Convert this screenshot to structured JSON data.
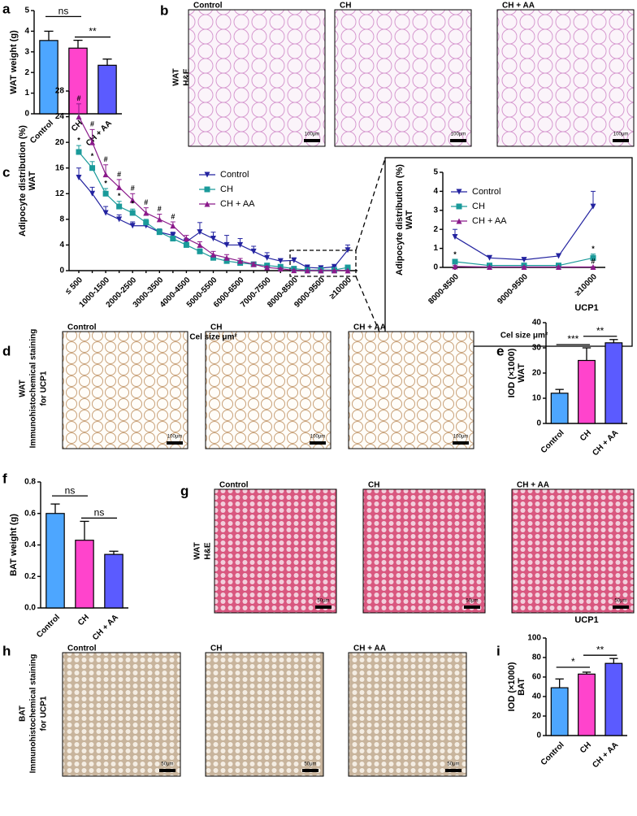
{
  "panel_letters": [
    "a",
    "b",
    "c",
    "d",
    "e",
    "f",
    "g",
    "h",
    "i"
  ],
  "figure_panels": [
    {
      "label": [
        "WAT",
        "H&E"
      ],
      "images": [
        {
          "title": "Control",
          "scale": "100μm"
        },
        {
          "title": "CH",
          "scale": "100μm"
        },
        {
          "title": "CH + AA",
          "scale": "100μm"
        }
      ]
    },
    {
      "label": [
        "WAT",
        "Immunohistochemical staining",
        "for UCP1"
      ],
      "images": [
        {
          "title": "Control",
          "scale": "100μm"
        },
        {
          "title": "CH",
          "scale": "100μm"
        },
        {
          "title": "CH + AA",
          "scale": "100μm"
        }
      ]
    },
    {
      "label": [
        "WAT",
        "H&E"
      ],
      "images": [
        {
          "title": "Control",
          "scale": "50μm"
        },
        {
          "title": "CH",
          "scale": "50μm"
        },
        {
          "title": "CH + AA",
          "scale": "50μm"
        }
      ]
    },
    {
      "label": [
        "BAT",
        "Immunohistochemical staining",
        "for UCP1"
      ],
      "images": [
        {
          "title": "Control",
          "scale": "50μm"
        },
        {
          "title": "CH",
          "scale": "50μm"
        },
        {
          "title": "CH + AA",
          "scale": "50μm"
        }
      ]
    }
  ],
  "chart_data": [
    {
      "type": "bar",
      "ylabel": [
        "WAT weight (g)"
      ],
      "categories": [
        "Control",
        "CH",
        "CH + AA"
      ],
      "values": [
        3.55,
        3.18,
        2.35
      ],
      "errors": [
        0.45,
        0.38,
        0.3
      ],
      "colors": [
        "#4da6ff",
        "#ff44cc",
        "#5b5bff"
      ],
      "ylim": [
        0,
        5
      ],
      "yticks": [
        0,
        1,
        2,
        3,
        4,
        5
      ],
      "significance": [
        {
          "from": 0,
          "to": 1,
          "label": "ns"
        },
        {
          "from": 1,
          "to": 2,
          "label": "**"
        }
      ]
    },
    {
      "type": "line",
      "ylabel": [
        "Adipocyte distribution (%)",
        "WAT"
      ],
      "xlabel": "Cel size μm²",
      "categories": [
        "≤ 500",
        null,
        "1000-1500",
        null,
        "2000-2500",
        null,
        "3000-3500",
        null,
        "4000-4500",
        null,
        "5000-5500",
        null,
        "6000-6500",
        null,
        "7000-7500",
        null,
        "8000-8500",
        null,
        "9000-9500",
        null,
        "≥10000"
      ],
      "series": [
        {
          "name": "Control",
          "color": "#2323a0",
          "marker": "triangle-down",
          "values": [
            14.5,
            12,
            9,
            8,
            7,
            7,
            6,
            5.5,
            4.5,
            6,
            5,
            4,
            4,
            3,
            2,
            1.5,
            1.6,
            0.5,
            0.4,
            0.6,
            3.2
          ],
          "errors": [
            1.5,
            1,
            1,
            0.7,
            0.6,
            0.7,
            0.5,
            0.5,
            0.5,
            1.5,
            1,
            1.5,
            1,
            0.8,
            0.8,
            0.3,
            0.4,
            0.1,
            0.1,
            0.1,
            0.8
          ]
        },
        {
          "name": "CH",
          "color": "#1a9a9a",
          "marker": "square",
          "values": [
            18.5,
            16,
            12,
            10,
            9,
            7.5,
            6,
            5,
            4,
            3,
            2,
            1.5,
            1.2,
            1,
            0.8,
            0.6,
            0.3,
            0.1,
            0.1,
            0.1,
            0.5
          ],
          "errors": [
            1,
            1,
            0.8,
            0.8,
            0.6,
            0.5,
            0.5,
            0.4,
            0.4,
            0.4,
            0.3,
            0.2,
            0.2,
            0.2,
            0.2,
            0.1,
            0.1,
            0.05,
            0.05,
            0.05,
            0.2
          ]
        },
        {
          "name": "CH + AA",
          "color": "#8b1a8b",
          "marker": "triangle-up",
          "values": [
            24,
            20,
            15,
            13,
            11,
            9,
            8,
            7,
            5,
            4,
            2.5,
            2,
            1.5,
            1,
            0.5,
            0.3,
            0.05,
            0.02,
            0.02,
            0.02,
            0.02
          ],
          "errors": [
            2,
            2,
            1.5,
            1.2,
            1,
            0.8,
            0.8,
            0.6,
            0.5,
            0.5,
            0.5,
            0.5,
            0.4,
            0.3,
            0.2,
            0.1,
            0.05,
            0.02,
            0.02,
            0.02,
            0.02
          ]
        }
      ],
      "annotations": [
        {
          "series": 1,
          "index": 0,
          "text": "*"
        },
        {
          "series": 1,
          "index": 1,
          "text": "*"
        },
        {
          "series": 1,
          "index": 2,
          "text": "*"
        },
        {
          "series": 1,
          "index": 3,
          "text": "*"
        },
        {
          "series": 1,
          "index": 4,
          "text": "*"
        },
        {
          "series": 2,
          "index": 0,
          "text": "#"
        },
        {
          "series": 2,
          "index": 1,
          "text": "#"
        },
        {
          "series": 2,
          "index": 2,
          "text": "#"
        },
        {
          "series": 2,
          "index": 3,
          "text": "#"
        },
        {
          "series": 2,
          "index": 4,
          "text": "#"
        },
        {
          "series": 2,
          "index": 5,
          "text": "#"
        },
        {
          "series": 2,
          "index": 6,
          "text": "#"
        },
        {
          "series": 2,
          "index": 7,
          "text": "#"
        }
      ],
      "ylim": [
        0,
        28
      ],
      "yticks": [
        0,
        4,
        8,
        12,
        16,
        20,
        24,
        28
      ],
      "legend": "upper center"
    },
    {
      "type": "line",
      "ylabel": [
        "Adipocyte distribution (%)",
        "WAT"
      ],
      "xlabel": "Cel size μm²",
      "categories": [
        "8000-8500",
        null,
        "9000-9500",
        null,
        "≥10000"
      ],
      "series": [
        {
          "name": "Control",
          "color": "#2323a0",
          "marker": "triangle-down",
          "values": [
            1.6,
            0.5,
            0.4,
            0.6,
            3.2
          ],
          "errors": [
            0.4,
            0.1,
            0.1,
            0.1,
            0.8
          ]
        },
        {
          "name": "CH",
          "color": "#1a9a9a",
          "marker": "square",
          "values": [
            0.3,
            0.1,
            0.1,
            0.1,
            0.5
          ],
          "errors": [
            0.1,
            0.05,
            0.05,
            0.05,
            0.2
          ]
        },
        {
          "name": "CH + AA",
          "color": "#8b1a8b",
          "marker": "triangle-up",
          "values": [
            0.05,
            0.02,
            0.02,
            0.02,
            0.02
          ],
          "errors": [
            0.05,
            0.02,
            0.02,
            0.02,
            0.02
          ]
        }
      ],
      "annotations": [
        {
          "series": 1,
          "index": 0,
          "text": "*"
        },
        {
          "series": 1,
          "index": 4,
          "text": "*"
        },
        {
          "series": 2,
          "index": 4,
          "text": "#"
        }
      ],
      "ylim": [
        0,
        5
      ],
      "yticks": [
        0,
        1,
        2,
        3,
        4,
        5
      ],
      "legend": "upper left"
    },
    {
      "type": "bar",
      "title": "UCP1",
      "ylabel": [
        "IOD (×1000)",
        "WAT"
      ],
      "categories": [
        "Control",
        "CH",
        "CH + AA"
      ],
      "values": [
        12,
        25,
        32
      ],
      "errors": [
        1.5,
        5,
        1.3
      ],
      "colors": [
        "#4da6ff",
        "#ff44cc",
        "#5b5bff"
      ],
      "ylim": [
        0,
        40
      ],
      "yticks": [
        0,
        10,
        20,
        30,
        40
      ],
      "significance": [
        {
          "from": 0,
          "to": 1,
          "label": "***"
        },
        {
          "from": 1,
          "to": 2,
          "label": "**"
        }
      ]
    },
    {
      "type": "bar",
      "ylabel": [
        "BAT weight (g)"
      ],
      "categories": [
        "Control",
        "CH",
        "CH + AA"
      ],
      "values": [
        0.6,
        0.43,
        0.34
      ],
      "errors": [
        0.06,
        0.12,
        0.02
      ],
      "colors": [
        "#4da6ff",
        "#ff44cc",
        "#5b5bff"
      ],
      "ylim": [
        0,
        0.8
      ],
      "yticks": [
        {
          "value": 0,
          "label": "0.0"
        },
        0.2,
        0.4,
        0.6,
        0.8
      ],
      "significance": [
        {
          "from": 0,
          "to": 1,
          "label": "ns"
        },
        {
          "from": 1,
          "to": 2,
          "label": "ns"
        }
      ]
    },
    {
      "type": "bar",
      "title": "UCP1",
      "ylabel": [
        "IOD (×1000)",
        "BAT"
      ],
      "categories": [
        "Control",
        "CH",
        "CH + AA"
      ],
      "values": [
        49,
        63,
        74
      ],
      "errors": [
        9,
        2,
        5
      ],
      "colors": [
        "#4da6ff",
        "#ff44cc",
        "#5b5bff"
      ],
      "ylim": [
        0,
        100
      ],
      "yticks": [
        0,
        20,
        40,
        60,
        80,
        100
      ],
      "significance": [
        {
          "from": 0,
          "to": 1,
          "label": "*"
        },
        {
          "from": 1,
          "to": 2,
          "label": "**"
        }
      ]
    }
  ]
}
